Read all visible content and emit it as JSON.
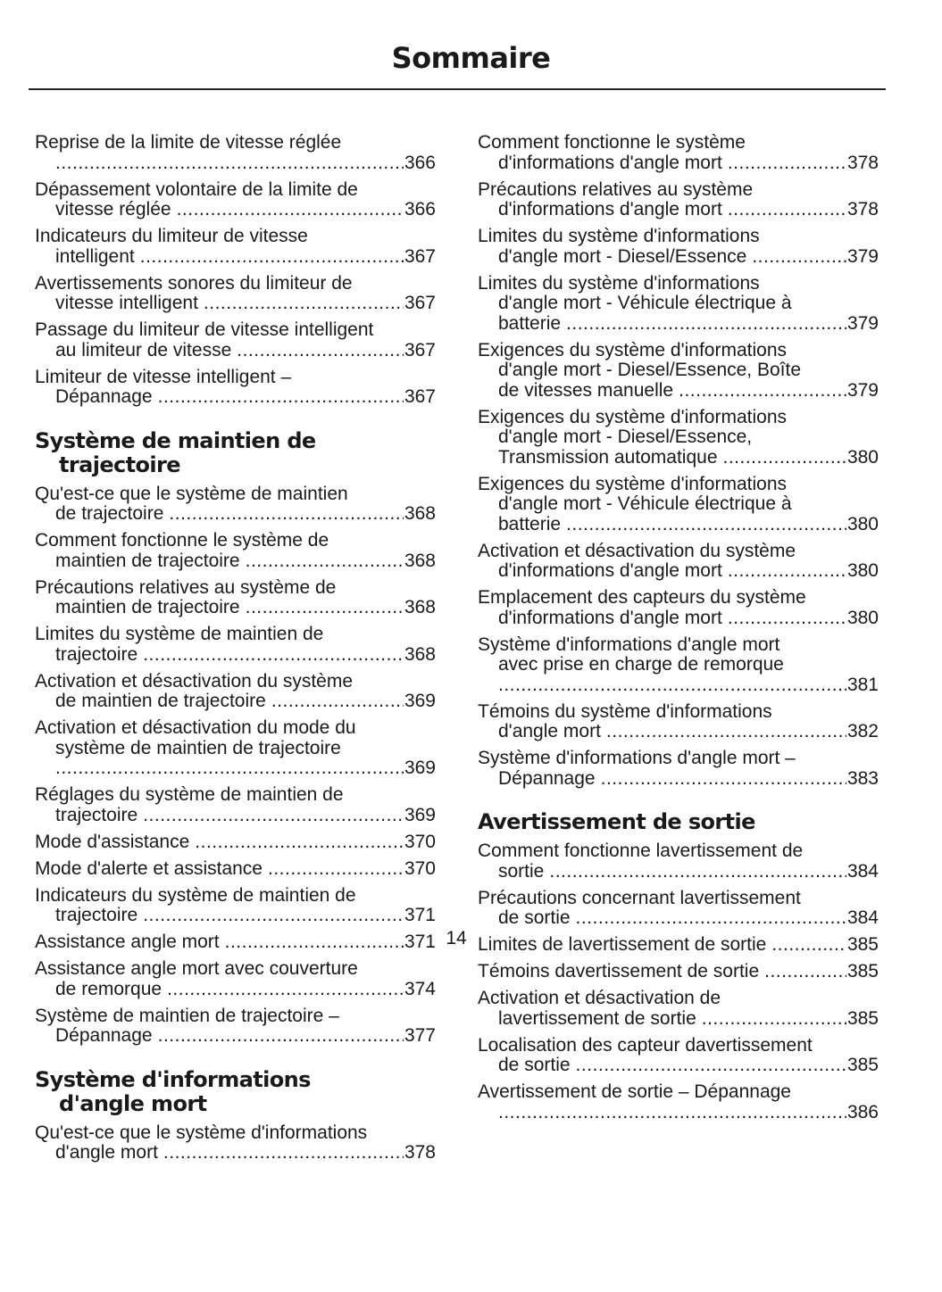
{
  "header": {
    "title": "Sommaire"
  },
  "footer": {
    "page_number": "14"
  },
  "columns": [
    {
      "items": [
        {
          "type": "entry",
          "lines": [
            "Reprise de la limite de vitesse réglée",
            ""
          ],
          "page": "366"
        },
        {
          "type": "entry",
          "lines": [
            "Dépassement volontaire de la limite de",
            "vitesse réglée"
          ],
          "page": "366"
        },
        {
          "type": "entry",
          "lines": [
            "Indicateurs du limiteur de vitesse",
            "intelligent"
          ],
          "page": "367"
        },
        {
          "type": "entry",
          "lines": [
            "Avertissements sonores du limiteur de",
            "vitesse intelligent"
          ],
          "page": "367"
        },
        {
          "type": "entry",
          "lines": [
            "Passage du limiteur de vitesse intelligent",
            "au limiteur de vitesse"
          ],
          "page": "367"
        },
        {
          "type": "entry",
          "lines": [
            "Limiteur de vitesse intelligent –",
            "Dépannage"
          ],
          "page": "367"
        },
        {
          "type": "heading",
          "lines": [
            "Système de maintien de",
            "trajectoire"
          ]
        },
        {
          "type": "entry",
          "lines": [
            "Qu'est-ce que le système de maintien",
            "de trajectoire"
          ],
          "page": "368"
        },
        {
          "type": "entry",
          "lines": [
            "Comment fonctionne le système de",
            "maintien de trajectoire"
          ],
          "page": "368"
        },
        {
          "type": "entry",
          "lines": [
            "Précautions relatives au système de",
            "maintien de trajectoire"
          ],
          "page": "368"
        },
        {
          "type": "entry",
          "lines": [
            "Limites du système de maintien de",
            "trajectoire"
          ],
          "page": "368"
        },
        {
          "type": "entry",
          "lines": [
            "Activation et désactivation du système",
            "de maintien de trajectoire"
          ],
          "page": "369"
        },
        {
          "type": "entry",
          "lines": [
            "Activation et désactivation du mode du",
            "système de maintien de trajectoire",
            ""
          ],
          "page": "369"
        },
        {
          "type": "entry",
          "lines": [
            "Réglages du système de maintien de",
            "trajectoire"
          ],
          "page": "369"
        },
        {
          "type": "entry",
          "lines": [
            "Mode d'assistance"
          ],
          "page": "370"
        },
        {
          "type": "entry",
          "lines": [
            "Mode d'alerte et assistance"
          ],
          "page": "370"
        },
        {
          "type": "entry",
          "lines": [
            "Indicateurs du système de maintien de",
            "trajectoire"
          ],
          "page": "371"
        },
        {
          "type": "entry",
          "lines": [
            "Assistance angle mort"
          ],
          "page": "371"
        },
        {
          "type": "entry",
          "lines": [
            "Assistance angle mort avec couverture",
            "de remorque"
          ],
          "page": "374"
        },
        {
          "type": "entry",
          "lines": [
            "Système de maintien de trajectoire –",
            "Dépannage"
          ],
          "page": "377"
        },
        {
          "type": "heading",
          "lines": [
            "Système d'informations",
            "d'angle mort"
          ]
        },
        {
          "type": "entry",
          "lines": [
            "Qu'est-ce que le système d'informations",
            "d'angle mort"
          ],
          "page": "378"
        }
      ]
    },
    {
      "items": [
        {
          "type": "entry",
          "lines": [
            "Comment fonctionne le système",
            "d'informations d'angle mort"
          ],
          "page": "378"
        },
        {
          "type": "entry",
          "lines": [
            "Précautions relatives au système",
            "d'informations d'angle mort"
          ],
          "page": "378"
        },
        {
          "type": "entry",
          "lines": [
            "Limites du système d'informations",
            "d'angle mort - Diesel/Essence"
          ],
          "page": "379"
        },
        {
          "type": "entry",
          "lines": [
            "Limites du système d'informations",
            "d'angle mort - Véhicule électrique à",
            "batterie"
          ],
          "page": "379"
        },
        {
          "type": "entry",
          "lines": [
            "Exigences du système d'informations",
            "d'angle mort - Diesel/Essence, Boîte",
            "de vitesses manuelle"
          ],
          "page": "379"
        },
        {
          "type": "entry",
          "lines": [
            "Exigences du système d'informations",
            "d'angle mort - Diesel/Essence,",
            "Transmission automatique"
          ],
          "page": "380"
        },
        {
          "type": "entry",
          "lines": [
            "Exigences du système d'informations",
            "d'angle mort - Véhicule électrique à",
            "batterie"
          ],
          "page": "380"
        },
        {
          "type": "entry",
          "lines": [
            "Activation et désactivation du système",
            "d'informations d'angle mort"
          ],
          "page": "380"
        },
        {
          "type": "entry",
          "lines": [
            "Emplacement des capteurs du système",
            "d'informations d'angle mort"
          ],
          "page": "380"
        },
        {
          "type": "entry",
          "lines": [
            "Système d'informations d'angle mort",
            "avec prise en charge de remorque",
            ""
          ],
          "page": "381"
        },
        {
          "type": "entry",
          "lines": [
            "Témoins du système d'informations",
            "d'angle mort"
          ],
          "page": "382"
        },
        {
          "type": "entry",
          "lines": [
            "Système d'informations d'angle mort –",
            "Dépannage"
          ],
          "page": "383"
        },
        {
          "type": "heading",
          "lines": [
            "Avertissement de sortie"
          ]
        },
        {
          "type": "entry",
          "lines": [
            "Comment fonctionne lavertissement de",
            "sortie"
          ],
          "page": "384"
        },
        {
          "type": "entry",
          "lines": [
            "Précautions concernant lavertissement",
            "de sortie"
          ],
          "page": "384"
        },
        {
          "type": "entry",
          "lines": [
            "Limites de lavertissement de sortie"
          ],
          "page": "385"
        },
        {
          "type": "entry",
          "lines": [
            "Témoins davertissement de sortie"
          ],
          "page": "385"
        },
        {
          "type": "entry",
          "lines": [
            "Activation et désactivation de",
            "lavertissement de sortie"
          ],
          "page": "385"
        },
        {
          "type": "entry",
          "lines": [
            "Localisation des capteur davertissement",
            "de sortie"
          ],
          "page": "385"
        },
        {
          "type": "entry",
          "lines": [
            "Avertissement de sortie – Dépannage",
            ""
          ],
          "page": "386"
        }
      ]
    }
  ]
}
